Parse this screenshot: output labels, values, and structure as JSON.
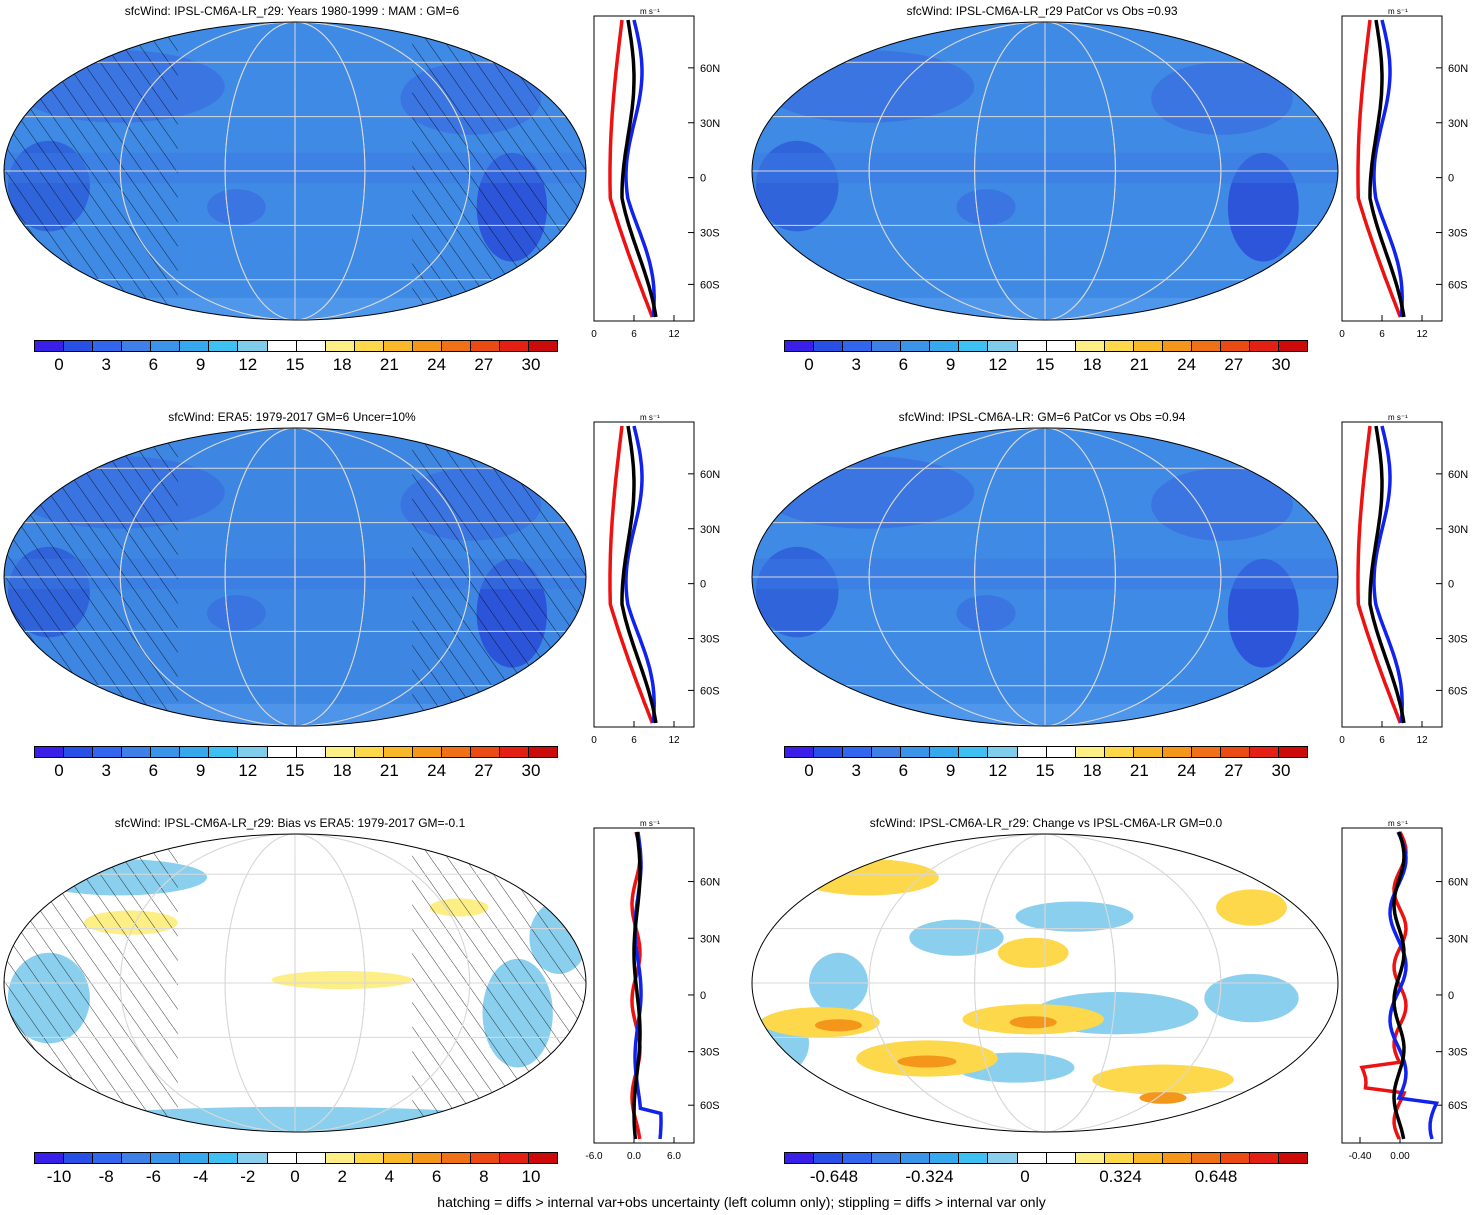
{
  "palette_abs": [
    "#3a1fe8",
    "#2850e6",
    "#3366ee",
    "#3f7fe8",
    "#3a94ea",
    "#35a8ee",
    "#3fc0f2",
    "#7fcdea",
    "#ffffff",
    "#ffffff",
    "#fdee86",
    "#fcd84a",
    "#f8b828",
    "#f4961a",
    "#f07018",
    "#ec4a14",
    "#e42014",
    "#cc0a0a"
  ],
  "palette_bias": [
    "#3a1fe8",
    "#2850e6",
    "#3366ee",
    "#3f7fe8",
    "#3a94ea",
    "#35a8ee",
    "#3fc0f2",
    "#8ad0ee",
    "#ffffff",
    "#ffffff",
    "#fdee86",
    "#fcd84a",
    "#f8b828",
    "#f4961a",
    "#f07018",
    "#ec4a14",
    "#e42014",
    "#cc0a0a"
  ],
  "panels": [
    {
      "title": "sfcWind: IPSL-CM6A-LR_r29: Years 1980-1999 : MAM : GM=6",
      "fill": "#3f8ae4",
      "xticks": [
        "0",
        "6",
        "12"
      ],
      "cbar_labels": [
        "0",
        "3",
        "6",
        "9",
        "12",
        "15",
        "18",
        "21",
        "24",
        "27",
        "30"
      ],
      "hatched": true
    },
    {
      "title": "sfcWind: IPSL-CM6A-LR_r29 PatCor vs Obs =0.93",
      "fill": "#3f8ae4",
      "xticks": [
        "0",
        "6",
        "12"
      ],
      "cbar_labels": [
        "0",
        "3",
        "6",
        "9",
        "12",
        "15",
        "18",
        "21",
        "24",
        "27",
        "30"
      ],
      "hatched": false
    },
    {
      "title": "sfcWind: ERA5: 1979-2017 GM=6 Uncer=10%",
      "fill": "#3d86e2",
      "xticks": [
        "0",
        "6",
        "12"
      ],
      "cbar_labels": [
        "0",
        "3",
        "6",
        "9",
        "12",
        "15",
        "18",
        "21",
        "24",
        "27",
        "30"
      ],
      "hatched": true
    },
    {
      "title": "sfcWind: IPSL-CM6A-LR: GM=6 PatCor vs Obs =0.94",
      "fill": "#3f8ae4",
      "xticks": [
        "0",
        "6",
        "12"
      ],
      "cbar_labels": [
        "0",
        "3",
        "6",
        "9",
        "12",
        "15",
        "18",
        "21",
        "24",
        "27",
        "30"
      ],
      "hatched": false
    },
    {
      "title": "sfcWind: IPSL-CM6A-LR_r29: Bias vs ERA5: 1979-2017 GM=-0.1",
      "fill": "#ffffff",
      "xticks": [
        "-6.0",
        "0.0",
        "6.0"
      ],
      "cbar_labels": [
        "-10",
        "-8",
        "-6",
        "-4",
        "-2",
        "0",
        "2",
        "4",
        "6",
        "8",
        "10"
      ],
      "hatched": true
    },
    {
      "title": "sfcWind: IPSL-CM6A-LR_r29: Change vs IPSL-CM6A-LR GM=0.0",
      "fill": "#ffffff",
      "xticks": [
        "-0.40",
        "0.00"
      ],
      "cbar_labels": [
        "-0.648",
        "-0.324",
        "0",
        "0.324",
        "0.648"
      ],
      "hatched": false
    }
  ],
  "lat_labels": [
    "60N",
    "30N",
    "0",
    "30S",
    "60S"
  ],
  "unit_label": "m s⁻¹",
  "footnote": "hatching = diffs > internal var+obs uncertainty (left column only); stippling = diffs > internal var only"
}
